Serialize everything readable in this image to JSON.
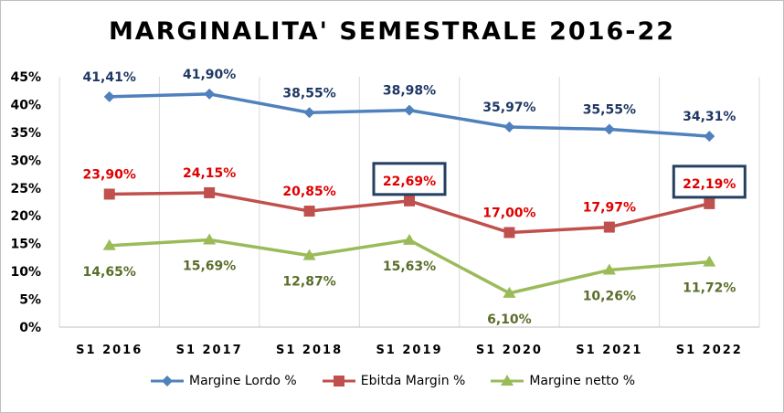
{
  "chart_data": {
    "type": "line",
    "title": "MARGINALITA' SEMESTRALE 2016-22",
    "categories": [
      "S1 2016",
      "S1 2017",
      "S1 2018",
      "S1 2019",
      "S1 2020",
      "S1 2021",
      "S1 2022"
    ],
    "ylim": [
      0,
      45
    ],
    "yticks": [
      "0%",
      "5%",
      "10%",
      "15%",
      "20%",
      "25%",
      "30%",
      "35%",
      "40%",
      "45%"
    ],
    "grid": "vertical",
    "legend_position": "bottom",
    "series": [
      {
        "name": "Margine Lordo %",
        "color": "#4f81bd",
        "label_color": "#1f3864",
        "marker": "diamond",
        "label_position": "above",
        "values": [
          41.41,
          41.9,
          38.55,
          38.98,
          35.97,
          35.55,
          34.31
        ],
        "labels": [
          "41,41%",
          "41,90%",
          "38,55%",
          "38,98%",
          "35,97%",
          "35,55%",
          "34,31%"
        ]
      },
      {
        "name": "Ebitda Margin %",
        "color": "#c0504d",
        "label_color": "#e00000",
        "marker": "square",
        "label_position": "above",
        "values": [
          23.9,
          24.15,
          20.85,
          22.69,
          17.0,
          17.97,
          22.19
        ],
        "labels": [
          "23,90%",
          "24,15%",
          "20,85%",
          "22,69%",
          "17,00%",
          "17,97%",
          "22,19%"
        ]
      },
      {
        "name": "Margine netto %",
        "color": "#9bbb59",
        "label_color": "#5a6e2b",
        "marker": "triangle",
        "label_position": "below",
        "values": [
          14.65,
          15.69,
          12.87,
          15.63,
          6.1,
          10.26,
          11.72
        ],
        "labels": [
          "14,65%",
          "15,69%",
          "12,87%",
          "15,63%",
          "6,10%",
          "10,26%",
          "11,72%"
        ]
      }
    ],
    "highlighted_labels": [
      {
        "series": 1,
        "category": 3,
        "box_color": "#243f60"
      },
      {
        "series": 1,
        "category": 6,
        "box_color": "#243f60"
      }
    ]
  }
}
